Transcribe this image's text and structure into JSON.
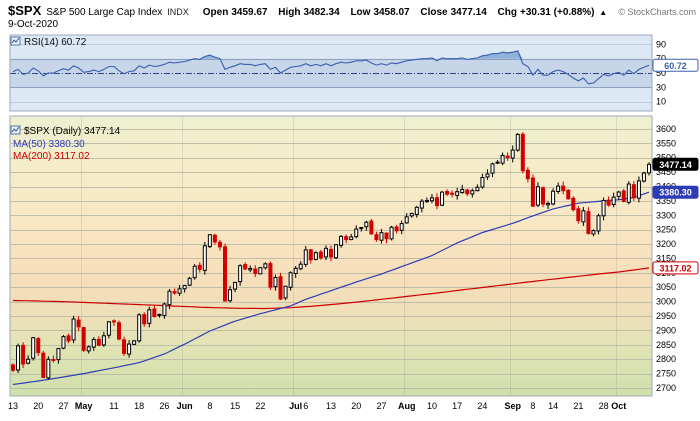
{
  "header": {
    "symbol": "$SPX",
    "name": "S&P 500 Large Cap Index",
    "exchange": "INDX",
    "date": "9-Oct-2020",
    "open_label": "Open",
    "open": "3459.67",
    "high_label": "High",
    "high": "3482.34",
    "low_label": "Low",
    "low": "3458.07",
    "close_label": "Close",
    "close": "3477.14",
    "chg_label": "Chg",
    "chg": "+30.31 (+0.88%)",
    "chg_arrow": "▲",
    "copyright": "© StockCharts.com"
  },
  "rsi_panel": {
    "legend": "RSI(14) 60.72",
    "last_value": "60.72"
  },
  "main_panel": {
    "legend_symbol": "$SPX (Daily) 3477.14",
    "legend_ma50": "MA(50) 3380.30",
    "legend_ma200": "MA(200) 3117.02",
    "last_close": "3477.14",
    "ma50_last": "3380.30",
    "ma200_last": "3117.02"
  },
  "colors": {
    "gradient": [
      [
        "0%",
        "#eef0d0"
      ],
      [
        "18%",
        "#f5ecca"
      ],
      [
        "38%",
        "#f8e7c4"
      ],
      [
        "55%",
        "#f7dfbb"
      ],
      [
        "70%",
        "#efdfb9"
      ],
      [
        "82%",
        "#e2e4b6"
      ],
      [
        "100%",
        "#cfe0ab"
      ]
    ],
    "grid": "#b9b9a4",
    "panel_border": "#a0a8b8",
    "rsi_bg": "#dde8f5",
    "rsi_band": "#c7d5e8",
    "rsi_band_line": "#8ba1bf",
    "rsi_grid": "#c2cedf",
    "rsi_mid": "#2f3e8f",
    "rsi_line": "#3a5fae",
    "rsi_fill": "#85acd6",
    "ma50": "#2d3bb5",
    "ma200": "#cc0000",
    "candle_up": "#000000",
    "candle_down": "#d40000"
  },
  "chart_data": {
    "type": "candlestick",
    "title": "$SPX (Daily)",
    "symbol": "$SPX",
    "timeframe": "Daily",
    "price_axis": {
      "min": 2700,
      "max": 3600,
      "step": 50
    },
    "rsi_axis": {
      "ticks": [
        90,
        70,
        50,
        30,
        10
      ],
      "overbought": 70,
      "mid": 50,
      "oversold": 30
    },
    "last": {
      "close": 3477.14,
      "ma50": 3380.3,
      "ma200": 3117.02,
      "rsi": 60.72
    },
    "dates": [
      "4/13",
      "4/14",
      "4/15",
      "4/16",
      "4/17",
      "4/20",
      "4/21",
      "4/22",
      "4/23",
      "4/24",
      "4/27",
      "4/28",
      "4/29",
      "4/30",
      "5/1",
      "5/4",
      "5/5",
      "5/6",
      "5/7",
      "5/8",
      "5/11",
      "5/12",
      "5/13",
      "5/14",
      "5/15",
      "5/18",
      "5/19",
      "5/20",
      "5/21",
      "5/22",
      "5/26",
      "5/27",
      "5/28",
      "5/29",
      "6/1",
      "6/2",
      "6/3",
      "6/4",
      "6/5",
      "6/8",
      "6/9",
      "6/10",
      "6/11",
      "6/12",
      "6/15",
      "6/16",
      "6/17",
      "6/18",
      "6/19",
      "6/22",
      "6/23",
      "6/24",
      "6/25",
      "6/26",
      "6/29",
      "6/30",
      "7/1",
      "7/2",
      "7/6",
      "7/7",
      "7/8",
      "7/9",
      "7/10",
      "7/13",
      "7/14",
      "7/15",
      "7/16",
      "7/17",
      "7/20",
      "7/21",
      "7/22",
      "7/23",
      "7/24",
      "7/27",
      "7/28",
      "7/29",
      "7/30",
      "7/31",
      "8/3",
      "8/4",
      "8/5",
      "8/6",
      "8/7",
      "8/10",
      "8/11",
      "8/12",
      "8/13",
      "8/14",
      "8/17",
      "8/18",
      "8/19",
      "8/20",
      "8/21",
      "8/24",
      "8/25",
      "8/26",
      "8/27",
      "8/28",
      "8/31",
      "9/1",
      "9/2",
      "9/3",
      "9/4",
      "9/8",
      "9/9",
      "9/10",
      "9/11",
      "9/14",
      "9/15",
      "9/16",
      "9/17",
      "9/18",
      "9/21",
      "9/22",
      "9/23",
      "9/24",
      "9/25",
      "9/28",
      "9/29",
      "9/30",
      "10/1",
      "10/2",
      "10/5",
      "10/6",
      "10/7",
      "10/8",
      "10/9"
    ],
    "closes": [
      2761.63,
      2846.06,
      2783.36,
      2799.55,
      2874.56,
      2823.16,
      2736.56,
      2799.31,
      2797.8,
      2836.74,
      2878.48,
      2863.39,
      2939.51,
      2912.43,
      2830.71,
      2842.74,
      2868.44,
      2848.42,
      2881.19,
      2929.8,
      2930.32,
      2870.12,
      2820,
      2852.5,
      2863.7,
      2953.91,
      2922.94,
      2971.61,
      2948.51,
      2955.45,
      2991.77,
      3036.13,
      3029.73,
      3044.31,
      3055.73,
      3080.82,
      3122.87,
      3112.35,
      3193.93,
      3232.39,
      3207.18,
      3190.14,
      3002.1,
      3041.31,
      3066.59,
      3124.74,
      3113.49,
      3115.34,
      3097.74,
      3117.86,
      3131.29,
      3050.33,
      3083.76,
      3009.05,
      3053.24,
      3100.29,
      3115.86,
      3130.01,
      3179.72,
      3145.32,
      3169.94,
      3152.05,
      3185.04,
      3155.22,
      3197.52,
      3226.56,
      3215.57,
      3224.73,
      3251.84,
      3257.3,
      3276.02,
      3235.66,
      3215.63,
      3239.41,
      3218.44,
      3258.44,
      3246.22,
      3271.12,
      3294.61,
      3306.51,
      3327.77,
      3349.16,
      3351.28,
      3360.47,
      3333.69,
      3380.35,
      3373.43,
      3372.85,
      3381.99,
      3389.78,
      3374.85,
      3385.51,
      3397.16,
      3431.28,
      3443.62,
      3478.73,
      3484.55,
      3508.01,
      3500.31,
      3526.65,
      3580.84,
      3455.06,
      3426.96,
      3331.84,
      3398.96,
      3339.19,
      3340.97,
      3383.54,
      3401.2,
      3385.49,
      3357.01,
      3319.47,
      3281.06,
      3315.57,
      3236.92,
      3246.59,
      3298.46,
      3351.6,
      3335.47,
      3363,
      3380.8,
      3348.44,
      3408.63,
      3360.97,
      3419.45,
      3446.83,
      3477.14
    ],
    "rsi": [
      52,
      55,
      48,
      50,
      57,
      53,
      46,
      50,
      50,
      53,
      56,
      54,
      60,
      57,
      51,
      52,
      54,
      52,
      55,
      59,
      59,
      53,
      49,
      52,
      53,
      60,
      57,
      61,
      59,
      60,
      62,
      65,
      64,
      65,
      66,
      68,
      70,
      69,
      73,
      75,
      72,
      70,
      55,
      58,
      60,
      63,
      62,
      62,
      60,
      62,
      63,
      55,
      58,
      50,
      54,
      58,
      59,
      60,
      63,
      60,
      62,
      60,
      63,
      60,
      63,
      65,
      64,
      65,
      67,
      67,
      68,
      64,
      61,
      63,
      61,
      64,
      63,
      65,
      67,
      68,
      69,
      70,
      70,
      71,
      67,
      71,
      70,
      70,
      70,
      71,
      69,
      70,
      71,
      74,
      75,
      77,
      77,
      79,
      78,
      79,
      81,
      63,
      59,
      47,
      55,
      47,
      47,
      52,
      54,
      52,
      48,
      43,
      39,
      43,
      35,
      36,
      42,
      48,
      46,
      49,
      51,
      47,
      54,
      49,
      55,
      58,
      60.72
    ],
    "ma50_points": [
      [
        0,
        2712
      ],
      [
        5,
        2724
      ],
      [
        10,
        2738
      ],
      [
        14,
        2750
      ],
      [
        20,
        2770
      ],
      [
        25,
        2788
      ],
      [
        30,
        2818
      ],
      [
        34,
        2852
      ],
      [
        39,
        2898
      ],
      [
        44,
        2932
      ],
      [
        49,
        2958
      ],
      [
        55,
        2985
      ],
      [
        58,
        3008
      ],
      [
        63,
        3038
      ],
      [
        68,
        3068
      ],
      [
        73,
        3096
      ],
      [
        78,
        3128
      ],
      [
        83,
        3160
      ],
      [
        88,
        3204
      ],
      [
        93,
        3240
      ],
      [
        99,
        3272
      ],
      [
        103,
        3298
      ],
      [
        107,
        3322
      ],
      [
        112,
        3342
      ],
      [
        117,
        3350
      ],
      [
        120,
        3354
      ],
      [
        123,
        3362
      ],
      [
        126,
        3380.3
      ]
    ],
    "ma200_points": [
      [
        0,
        3004
      ],
      [
        10,
        3000
      ],
      [
        20,
        2993
      ],
      [
        30,
        2986
      ],
      [
        38,
        2980
      ],
      [
        44,
        2977
      ],
      [
        50,
        2976
      ],
      [
        55,
        2979
      ],
      [
        60,
        2985
      ],
      [
        65,
        2993
      ],
      [
        70,
        3002
      ],
      [
        75,
        3012
      ],
      [
        80,
        3022
      ],
      [
        85,
        3032
      ],
      [
        90,
        3043
      ],
      [
        95,
        3053
      ],
      [
        100,
        3064
      ],
      [
        105,
        3074
      ],
      [
        110,
        3084
      ],
      [
        115,
        3094
      ],
      [
        120,
        3103
      ],
      [
        126,
        3117.02
      ]
    ],
    "month_ticks": [
      14,
      34,
      56,
      78,
      99,
      120
    ],
    "x_ticks": [
      {
        "i": 0,
        "label": "13"
      },
      {
        "i": 5,
        "label": "20"
      },
      {
        "i": 10,
        "label": "27"
      },
      {
        "i": 14,
        "label": "May",
        "month": true
      },
      {
        "i": 20,
        "label": "11"
      },
      {
        "i": 25,
        "label": "18"
      },
      {
        "i": 30,
        "label": "26"
      },
      {
        "i": 34,
        "label": "Jun",
        "month": true
      },
      {
        "i": 39,
        "label": "8"
      },
      {
        "i": 44,
        "label": "15"
      },
      {
        "i": 49,
        "label": "22"
      },
      {
        "i": 56,
        "label": "Jul",
        "month": true
      },
      {
        "i": 58,
        "label": "6"
      },
      {
        "i": 63,
        "label": "13"
      },
      {
        "i": 68,
        "label": "20"
      },
      {
        "i": 73,
        "label": "27"
      },
      {
        "i": 78,
        "label": "Aug",
        "month": true
      },
      {
        "i": 83,
        "label": "10"
      },
      {
        "i": 88,
        "label": "17"
      },
      {
        "i": 93,
        "label": "24"
      },
      {
        "i": 99,
        "label": "Sep",
        "month": true
      },
      {
        "i": 103,
        "label": "8"
      },
      {
        "i": 107,
        "label": "14"
      },
      {
        "i": 112,
        "label": "21"
      },
      {
        "i": 117,
        "label": "28"
      },
      {
        "i": 120,
        "label": "Oct",
        "month": true
      }
    ]
  }
}
